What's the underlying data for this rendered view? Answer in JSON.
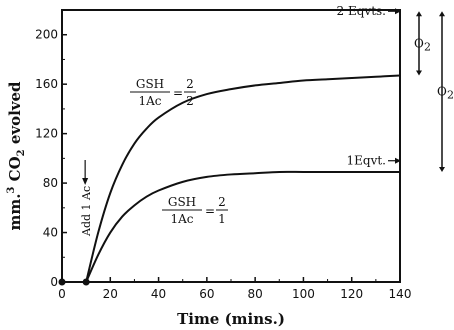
{
  "chart_data": {
    "type": "line",
    "title": "",
    "xlabel": "Time (mins.)",
    "ylabel_main": "mm.",
    "ylabel_sup": "3",
    "ylabel_mid": " CO",
    "ylabel_sub": "2",
    "ylabel_end": " evolved",
    "xlim": [
      0,
      140
    ],
    "ylim": [
      0,
      220
    ],
    "xticks": [
      0,
      20,
      40,
      60,
      80,
      100,
      120,
      140
    ],
    "yticks": [
      0,
      40,
      80,
      120,
      160,
      200
    ],
    "grid": false,
    "series": [
      {
        "label_num": "GSH",
        "label_den": "1Ac",
        "label_eq": "=",
        "label_ratio_num": "2",
        "label_ratio_den": "2",
        "x": [
          10,
          15,
          20,
          25,
          30,
          35,
          40,
          50,
          60,
          70,
          80,
          90,
          100,
          110,
          120,
          130,
          140
        ],
        "y": [
          0,
          40,
          72,
          95,
          112,
          124,
          133,
          145,
          152,
          156,
          159,
          161,
          163,
          164,
          165,
          166,
          167
        ]
      },
      {
        "label_num": "GSH",
        "label_den": "1Ac",
        "label_eq": "=",
        "label_ratio_num": "2",
        "label_ratio_den": "1",
        "x": [
          10,
          15,
          20,
          25,
          30,
          35,
          40,
          50,
          60,
          70,
          80,
          90,
          100,
          110,
          120,
          130,
          140
        ],
        "y": [
          0,
          22,
          40,
          53,
          62,
          69,
          74,
          81,
          85,
          87,
          88,
          89,
          89,
          89,
          89,
          89,
          89
        ]
      }
    ],
    "start_point": {
      "x": 10,
      "y": 0
    },
    "annotations": {
      "add_label": "Add 1 Ac",
      "add_x": 10,
      "eq2_label": "2 Eqvts.",
      "eq2_y": 219,
      "eq1_label": "1Eqvt.",
      "eq1_y": 90,
      "o2_small_label": "O",
      "o2_small_sub": "2",
      "o2_small_range": [
        167,
        219
      ],
      "o2_large_label": "O",
      "o2_large_sub": "2",
      "o2_large_range": [
        89,
        219
      ]
    }
  }
}
